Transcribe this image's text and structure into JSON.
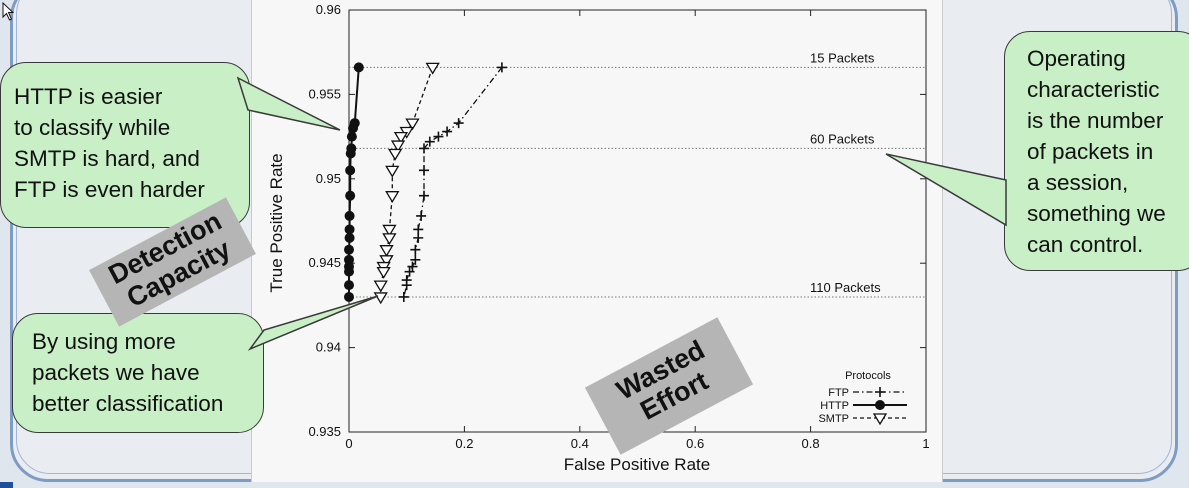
{
  "chart_data": {
    "type": "line",
    "xlabel": "False Positive Rate",
    "ylabel": "True Positive Rate",
    "xlim": [
      0,
      1
    ],
    "ylim": [
      0.935,
      0.96
    ],
    "xticks": [
      "0",
      "0.2",
      "0.4",
      "0.6",
      "0.8",
      "1"
    ],
    "yticks": [
      "0.935",
      "0.94",
      "0.945",
      "0.95",
      "0.955",
      "0.96"
    ],
    "grid": false,
    "legend": {
      "title": "Protocols",
      "position": "bottom-right",
      "entries": [
        "FTP",
        "HTTP",
        "SMTP"
      ]
    },
    "reference_lines": [
      {
        "y": 0.9566,
        "label": "15 Packets"
      },
      {
        "y": 0.9518,
        "label": "60 Packets"
      },
      {
        "y": 0.943,
        "label": "110 Packets"
      }
    ],
    "series": [
      {
        "name": "FTP",
        "marker": "plus",
        "style": "dash-dot",
        "color": "#111111",
        "x": [
          0.265,
          0.19,
          0.17,
          0.155,
          0.14,
          0.13,
          0.13,
          0.13,
          0.125,
          0.12,
          0.12,
          0.115,
          0.115,
          0.11,
          0.105,
          0.1,
          0.1,
          0.095
        ],
        "y": [
          0.9566,
          0.9533,
          0.9528,
          0.9525,
          0.9522,
          0.9518,
          0.9505,
          0.949,
          0.9478,
          0.947,
          0.9465,
          0.9458,
          0.9452,
          0.9448,
          0.9445,
          0.944,
          0.9437,
          0.943
        ]
      },
      {
        "name": "HTTP",
        "marker": "circle",
        "style": "solid",
        "color": "#111111",
        "x": [
          0.017,
          0.01,
          0.007,
          0.005,
          0.004,
          0.003,
          0.002,
          0.002,
          0.001,
          0.001,
          0.001,
          0.0,
          0.0,
          0.0,
          0.0,
          0.0,
          0.0
        ],
        "y": [
          0.9566,
          0.9533,
          0.953,
          0.9525,
          0.9518,
          0.9515,
          0.9505,
          0.949,
          0.9478,
          0.947,
          0.9465,
          0.9458,
          0.9452,
          0.9448,
          0.9445,
          0.9437,
          0.943
        ]
      },
      {
        "name": "SMTP",
        "marker": "triangle-down",
        "style": "dashed",
        "color": "#111111",
        "x": [
          0.145,
          0.11,
          0.1,
          0.09,
          0.085,
          0.08,
          0.075,
          0.075,
          0.07,
          0.07,
          0.065,
          0.065,
          0.06,
          0.06,
          0.055,
          0.055
        ],
        "y": [
          0.9566,
          0.9533,
          0.9528,
          0.9525,
          0.952,
          0.9515,
          0.9505,
          0.949,
          0.947,
          0.9465,
          0.9458,
          0.9452,
          0.9448,
          0.9445,
          0.9437,
          0.943
        ]
      }
    ]
  },
  "callouts": {
    "http_smtp_ftp": [
      "HTTP is easier",
      "to classify while",
      "SMTP is hard, and",
      "FTP is even harder"
    ],
    "more_packets": [
      "By using more",
      "packets we have",
      "better classification"
    ],
    "operating_characteristic": [
      "Operating",
      "characteristic",
      "is the number",
      "of packets in",
      "a session,",
      "something we",
      "can control."
    ]
  },
  "stamps": {
    "detection_capacity": [
      "Detection",
      "Capacity"
    ],
    "wasted_effort": [
      "Wasted",
      "Effort"
    ]
  },
  "colors": {
    "callout_fill": "#c9efc6",
    "stamp_fill": "#b5b5b5",
    "frame_border": "#7e9bc2",
    "plot_background": "#f7f7f7"
  }
}
